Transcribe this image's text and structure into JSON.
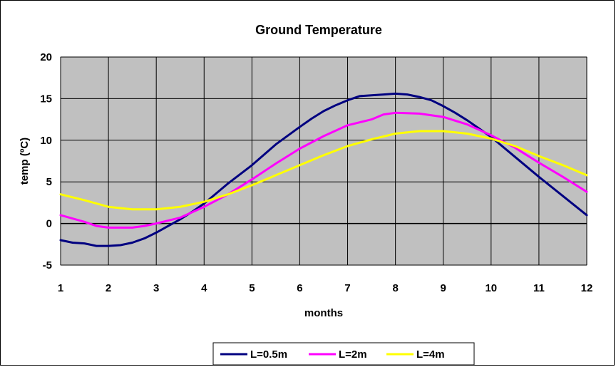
{
  "chart_data": {
    "type": "line",
    "title": "Ground Temperature",
    "xlabel": "months",
    "ylabel": "temp (ºC)",
    "xlim": [
      1,
      12
    ],
    "ylim": [
      -5,
      20
    ],
    "x_ticks": [
      1,
      2,
      3,
      4,
      5,
      6,
      7,
      8,
      9,
      10,
      11,
      12
    ],
    "y_ticks": [
      -5,
      0,
      5,
      10,
      15,
      20
    ],
    "grid": true,
    "plot_background": "#c0c0c0",
    "legend_position": "bottom",
    "series": [
      {
        "name": "L=0.5m",
        "color": "#000080",
        "x": [
          1,
          1.25,
          1.5,
          1.75,
          2,
          2.25,
          2.5,
          2.75,
          3,
          3.25,
          3.5,
          3.75,
          4,
          4.5,
          5,
          5.5,
          6,
          6.25,
          6.5,
          6.75,
          7,
          7.25,
          7.5,
          7.75,
          8,
          8.25,
          8.5,
          8.75,
          9,
          9.25,
          9.5,
          9.75,
          10,
          10.5,
          11,
          11.5,
          12
        ],
        "y": [
          -2.0,
          -2.3,
          -2.4,
          -2.7,
          -2.7,
          -2.6,
          -2.3,
          -1.8,
          -1.1,
          -0.3,
          0.5,
          1.4,
          2.4,
          4.8,
          7.0,
          9.5,
          11.6,
          12.6,
          13.5,
          14.2,
          14.8,
          15.3,
          15.4,
          15.5,
          15.6,
          15.5,
          15.2,
          14.8,
          14.1,
          13.3,
          12.4,
          11.4,
          10.4,
          8.0,
          5.6,
          3.3,
          1.0
        ]
      },
      {
        "name": "L=2m",
        "color": "#ff00ff",
        "x": [
          1,
          1.5,
          1.75,
          2,
          2.25,
          2.5,
          2.75,
          3,
          3.5,
          4,
          4.5,
          5,
          5.5,
          6,
          6.5,
          7,
          7.5,
          7.75,
          8,
          8.5,
          9,
          9.5,
          10,
          10.5,
          11,
          11.5,
          12
        ],
        "y": [
          1.0,
          0.2,
          -0.3,
          -0.5,
          -0.5,
          -0.5,
          -0.3,
          0.0,
          0.7,
          2.0,
          3.5,
          5.3,
          7.2,
          9.0,
          10.5,
          11.8,
          12.5,
          13.1,
          13.3,
          13.2,
          12.8,
          11.9,
          10.6,
          9.1,
          7.3,
          5.6,
          3.8
        ]
      },
      {
        "name": "L=4m",
        "color": "#ffff00",
        "x": [
          1,
          1.5,
          2,
          2.5,
          3,
          3.5,
          4,
          4.5,
          5,
          5.5,
          6,
          6.5,
          7,
          7.5,
          8,
          8.5,
          9,
          9.5,
          10,
          10.5,
          11,
          11.5,
          12
        ],
        "y": [
          3.5,
          2.8,
          2.0,
          1.7,
          1.7,
          2.0,
          2.6,
          3.5,
          4.6,
          5.8,
          7.0,
          8.2,
          9.3,
          10.1,
          10.8,
          11.1,
          11.1,
          10.8,
          10.2,
          9.3,
          8.1,
          7.0,
          5.8
        ]
      }
    ]
  }
}
